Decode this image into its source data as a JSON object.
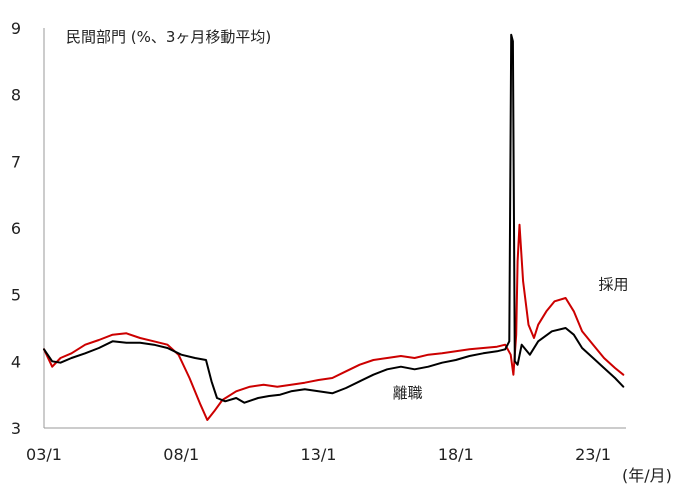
{
  "chart_data": {
    "type": "line",
    "title": "",
    "annotation": "民間部門 (%、3ヶ月移動平均)",
    "xlabel": "(年/月)",
    "ylabel": "",
    "xlim": [
      2003.0,
      2024.2
    ],
    "ylim": [
      3,
      9
    ],
    "x_ticks": [
      {
        "x": 2003.0,
        "label": "03/1"
      },
      {
        "x": 2008.0,
        "label": "08/1"
      },
      {
        "x": 2013.0,
        "label": "13/1"
      },
      {
        "x": 2018.0,
        "label": "18/1"
      },
      {
        "x": 2023.0,
        "label": "23/1"
      }
    ],
    "y_ticks": [
      3,
      4,
      5,
      6,
      7,
      8,
      9
    ],
    "grid": false,
    "legend": "none",
    "series": [
      {
        "name": "採用",
        "color": "#cc0000",
        "label_pos": [
          2023.2,
          5.08
        ],
        "points": [
          [
            2003.0,
            4.18
          ],
          [
            2003.3,
            3.92
          ],
          [
            2003.6,
            4.05
          ],
          [
            2004.0,
            4.12
          ],
          [
            2004.5,
            4.25
          ],
          [
            2005.0,
            4.32
          ],
          [
            2005.5,
            4.4
          ],
          [
            2006.0,
            4.42
          ],
          [
            2006.5,
            4.35
          ],
          [
            2007.0,
            4.3
          ],
          [
            2007.5,
            4.25
          ],
          [
            2007.9,
            4.1
          ],
          [
            2008.3,
            3.75
          ],
          [
            2008.7,
            3.35
          ],
          [
            2008.95,
            3.12
          ],
          [
            2009.2,
            3.25
          ],
          [
            2009.5,
            3.42
          ],
          [
            2010.0,
            3.55
          ],
          [
            2010.5,
            3.62
          ],
          [
            2011.0,
            3.65
          ],
          [
            2011.5,
            3.62
          ],
          [
            2012.0,
            3.65
          ],
          [
            2012.5,
            3.68
          ],
          [
            2013.0,
            3.72
          ],
          [
            2013.5,
            3.75
          ],
          [
            2014.0,
            3.85
          ],
          [
            2014.5,
            3.95
          ],
          [
            2015.0,
            4.02
          ],
          [
            2015.5,
            4.05
          ],
          [
            2016.0,
            4.08
          ],
          [
            2016.5,
            4.05
          ],
          [
            2017.0,
            4.1
          ],
          [
            2017.5,
            4.12
          ],
          [
            2018.0,
            4.15
          ],
          [
            2018.5,
            4.18
          ],
          [
            2019.0,
            4.2
          ],
          [
            2019.5,
            4.22
          ],
          [
            2019.8,
            4.25
          ],
          [
            2020.0,
            4.1
          ],
          [
            2020.1,
            3.8
          ],
          [
            2020.2,
            4.4
          ],
          [
            2020.25,
            5.5
          ],
          [
            2020.32,
            6.05
          ],
          [
            2020.45,
            5.2
          ],
          [
            2020.65,
            4.55
          ],
          [
            2020.85,
            4.35
          ],
          [
            2021.0,
            4.55
          ],
          [
            2021.3,
            4.75
          ],
          [
            2021.6,
            4.9
          ],
          [
            2022.0,
            4.95
          ],
          [
            2022.3,
            4.75
          ],
          [
            2022.6,
            4.45
          ],
          [
            2023.0,
            4.25
          ],
          [
            2023.4,
            4.05
          ],
          [
            2023.8,
            3.9
          ],
          [
            2024.1,
            3.8
          ]
        ]
      },
      {
        "name": "離職",
        "color": "#000000",
        "label_pos": [
          2015.7,
          3.45
        ],
        "points": [
          [
            2003.0,
            4.18
          ],
          [
            2003.3,
            4.0
          ],
          [
            2003.6,
            3.98
          ],
          [
            2004.0,
            4.05
          ],
          [
            2004.5,
            4.12
          ],
          [
            2005.0,
            4.2
          ],
          [
            2005.5,
            4.3
          ],
          [
            2006.0,
            4.28
          ],
          [
            2006.5,
            4.28
          ],
          [
            2007.0,
            4.25
          ],
          [
            2007.5,
            4.2
          ],
          [
            2008.0,
            4.1
          ],
          [
            2008.5,
            4.05
          ],
          [
            2008.9,
            4.02
          ],
          [
            2009.1,
            3.7
          ],
          [
            2009.3,
            3.45
          ],
          [
            2009.6,
            3.4
          ],
          [
            2010.0,
            3.45
          ],
          [
            2010.3,
            3.38
          ],
          [
            2010.8,
            3.45
          ],
          [
            2011.2,
            3.48
          ],
          [
            2011.6,
            3.5
          ],
          [
            2012.0,
            3.55
          ],
          [
            2012.5,
            3.58
          ],
          [
            2013.0,
            3.55
          ],
          [
            2013.5,
            3.52
          ],
          [
            2014.0,
            3.6
          ],
          [
            2014.5,
            3.7
          ],
          [
            2015.0,
            3.8
          ],
          [
            2015.5,
            3.88
          ],
          [
            2016.0,
            3.92
          ],
          [
            2016.5,
            3.88
          ],
          [
            2017.0,
            3.92
          ],
          [
            2017.5,
            3.98
          ],
          [
            2018.0,
            4.02
          ],
          [
            2018.5,
            4.08
          ],
          [
            2019.0,
            4.12
          ],
          [
            2019.5,
            4.15
          ],
          [
            2019.8,
            4.18
          ],
          [
            2019.95,
            4.3
          ],
          [
            2020.02,
            8.9
          ],
          [
            2020.08,
            8.8
          ],
          [
            2020.15,
            4.0
          ],
          [
            2020.25,
            3.95
          ],
          [
            2020.4,
            4.25
          ],
          [
            2020.7,
            4.1
          ],
          [
            2021.0,
            4.3
          ],
          [
            2021.5,
            4.45
          ],
          [
            2022.0,
            4.5
          ],
          [
            2022.3,
            4.4
          ],
          [
            2022.6,
            4.2
          ],
          [
            2023.0,
            4.05
          ],
          [
            2023.4,
            3.9
          ],
          [
            2023.8,
            3.75
          ],
          [
            2024.1,
            3.62
          ]
        ]
      }
    ]
  }
}
